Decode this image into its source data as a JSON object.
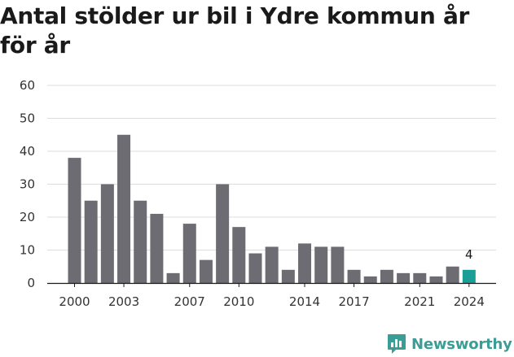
{
  "chart_data": {
    "type": "bar",
    "title": "Antal stölder ur bil i Ydre kommun år för år",
    "xlabel": "",
    "ylabel": "",
    "ylim": [
      0,
      60
    ],
    "yticks": [
      0,
      10,
      20,
      30,
      40,
      50,
      60
    ],
    "grid": true,
    "categories": [
      2000,
      2001,
      2002,
      2003,
      2004,
      2005,
      2006,
      2007,
      2008,
      2009,
      2010,
      2011,
      2012,
      2013,
      2014,
      2015,
      2016,
      2017,
      2018,
      2019,
      2020,
      2021,
      2022,
      2023,
      2024
    ],
    "values": [
      38,
      25,
      30,
      45,
      25,
      21,
      3,
      18,
      7,
      30,
      17,
      9,
      11,
      4,
      12,
      11,
      11,
      4,
      2,
      4,
      3,
      3,
      2,
      5,
      4
    ],
    "xtick_labels": [
      "2000",
      "2003",
      "2007",
      "2010",
      "2014",
      "2017",
      "2021",
      "2024"
    ],
    "highlight_index": 24,
    "highlight_label": "4",
    "colors": {
      "bar": "#6d6c72",
      "highlight": "#1a9e96",
      "grid": "#dddddd"
    }
  },
  "brand": {
    "name": "Newsworthy",
    "icon": "newsworthy-logo-icon"
  }
}
